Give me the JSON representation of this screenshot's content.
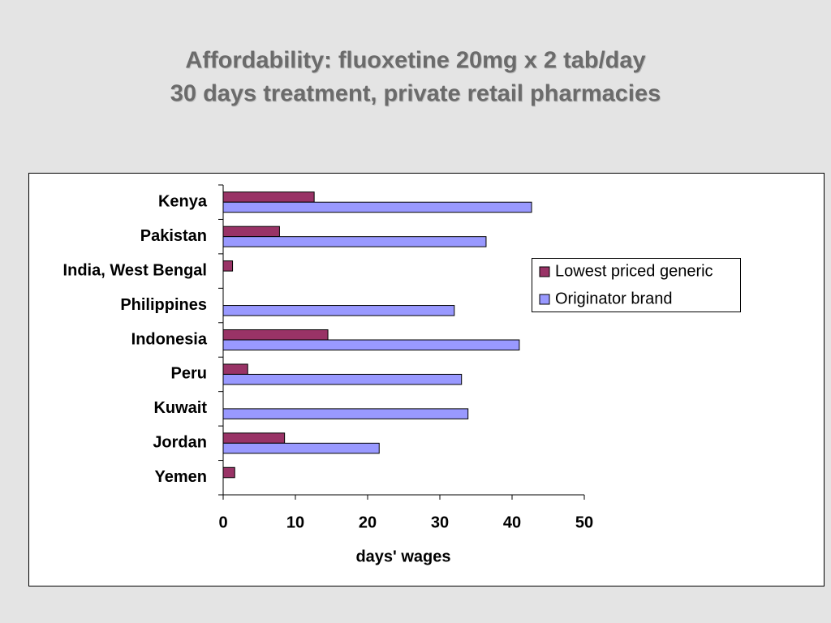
{
  "chart_data": {
    "type": "bar",
    "orientation": "horizontal",
    "title": "Affordability: fluoxetine 20mg x 2 tab/day",
    "subtitle": "30 days treatment, private retail pharmacies",
    "x_label": "days' wages",
    "categories": [
      "Kenya",
      "Pakistan",
      "India, West Bengal",
      "Philippines",
      "Indonesia",
      "Peru",
      "Kuwait",
      "Jordan",
      "Yemen"
    ],
    "series": [
      {
        "name": "Lowest priced generic",
        "color": "#993366",
        "values": [
          12.6,
          7.8,
          1.3,
          null,
          14.5,
          3.4,
          null,
          8.5,
          1.6
        ]
      },
      {
        "name": "Originator brand",
        "color": "#9999ff",
        "values": [
          42.7,
          36.4,
          null,
          32.0,
          41.0,
          33.0,
          33.9,
          21.6,
          null
        ]
      }
    ],
    "xlim": [
      0,
      50
    ],
    "xticks": [
      0,
      10,
      20,
      30,
      40,
      50
    ],
    "legend": "right"
  }
}
